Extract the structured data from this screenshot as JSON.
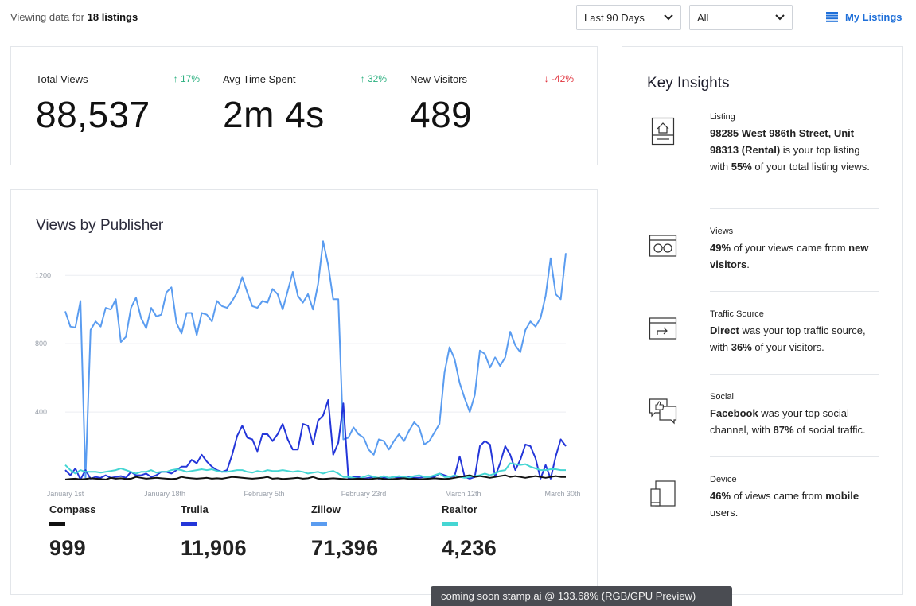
{
  "header": {
    "viewing_prefix": "Viewing data for",
    "viewing_count": "18 listings",
    "date_range": "Last 90 Days",
    "filter": "All",
    "my_listings": "My Listings"
  },
  "stats": [
    {
      "label": "Total Views",
      "change": "↑ 17%",
      "value": "88,537"
    },
    {
      "label": "Avg Time Spent",
      "change": "↑ 32%",
      "value": "2m 4s"
    },
    {
      "label": "New Visitors",
      "change": "↓ -42%",
      "value": "489"
    }
  ],
  "colors": {
    "up": "#2bb07f",
    "down": "#e0313b",
    "link": "#1e6fd9",
    "compass": "#111111",
    "trulia": "#2436d9",
    "zillow": "#5a9cf0",
    "realtor": "#45d6d3"
  },
  "chart": {
    "title": "Views by Publisher",
    "legend": [
      {
        "name": "Compass",
        "total": "999"
      },
      {
        "name": "Trulia",
        "total": "11,906"
      },
      {
        "name": "Zillow",
        "total": "71,396"
      },
      {
        "name": "Realtor",
        "total": "4,236"
      }
    ]
  },
  "chart_data": {
    "type": "line",
    "title": "Views by Publisher",
    "xlabel": "",
    "ylabel": "",
    "x_ticks": [
      "January 1st",
      "January 18th",
      "February 5th",
      "February 23rd",
      "March 12th",
      "March 30th"
    ],
    "y_ticks": [
      400,
      800,
      1200
    ],
    "ylim": [
      0,
      1420
    ],
    "grid": true,
    "series": [
      {
        "name": "Zillow",
        "values": [
          990,
          900,
          895,
          1050,
          10,
          880,
          930,
          900,
          1010,
          1000,
          1060,
          810,
          840,
          1010,
          1070,
          950,
          890,
          1010,
          960,
          970,
          1100,
          1130,
          920,
          860,
          980,
          980,
          850,
          980,
          970,
          930,
          1050,
          1020,
          1010,
          1050,
          1100,
          1190,
          1100,
          1020,
          1010,
          1050,
          1040,
          1120,
          1090,
          1000,
          1110,
          1220,
          1080,
          1040,
          1090,
          1000,
          1150,
          1400,
          1260,
          1060,
          1060,
          240,
          250,
          310,
          270,
          250,
          180,
          150,
          240,
          230,
          180,
          230,
          270,
          230,
          290,
          340,
          310,
          210,
          230,
          280,
          330,
          630,
          780,
          710,
          570,
          480,
          400,
          500,
          760,
          740,
          660,
          720,
          670,
          720,
          870,
          790,
          750,
          880,
          930,
          900,
          950,
          1080,
          1300,
          1090,
          1060,
          1330
        ]
      },
      {
        "name": "Trulia",
        "values": [
          60,
          30,
          70,
          5,
          60,
          10,
          20,
          15,
          30,
          15,
          20,
          25,
          15,
          50,
          30,
          30,
          40,
          20,
          30,
          50,
          50,
          40,
          60,
          80,
          80,
          120,
          100,
          150,
          110,
          80,
          60,
          50,
          60,
          150,
          260,
          320,
          250,
          240,
          170,
          270,
          270,
          230,
          270,
          330,
          240,
          180,
          180,
          330,
          320,
          210,
          350,
          380,
          470,
          150,
          220,
          450,
          10,
          20,
          20,
          10,
          15,
          20,
          10,
          15,
          15,
          20,
          15,
          15,
          20,
          15,
          15,
          20,
          20,
          20,
          40,
          30,
          20,
          25,
          140,
          20,
          10,
          20,
          200,
          230,
          210,
          20,
          100,
          200,
          150,
          60,
          120,
          210,
          200,
          130,
          10,
          90,
          10,
          140,
          240,
          200
        ]
      },
      {
        "name": "Realtor",
        "values": [
          90,
          60,
          40,
          60,
          50,
          50,
          50,
          45,
          50,
          55,
          60,
          70,
          60,
          50,
          40,
          50,
          50,
          60,
          45,
          50,
          50,
          60,
          65,
          60,
          50,
          55,
          60,
          65,
          60,
          65,
          55,
          50,
          50,
          55,
          60,
          60,
          50,
          45,
          55,
          50,
          60,
          55,
          55,
          60,
          55,
          50,
          55,
          50,
          40,
          45,
          50,
          40,
          50,
          55,
          40,
          20,
          20,
          15,
          10,
          20,
          30,
          20,
          15,
          25,
          15,
          20,
          25,
          20,
          15,
          25,
          30,
          20,
          20,
          30,
          40,
          20,
          20,
          30,
          20,
          15,
          20,
          25,
          30,
          40,
          30,
          40,
          55,
          60,
          100,
          95,
          90,
          95,
          80,
          70,
          60,
          60,
          65,
          65,
          60,
          60
        ]
      },
      {
        "name": "Compass",
        "values": [
          5,
          8,
          10,
          6,
          8,
          12,
          10,
          8,
          5,
          15,
          10,
          12,
          8,
          10,
          20,
          15,
          10,
          12,
          15,
          12,
          10,
          8,
          10,
          20,
          15,
          12,
          10,
          12,
          15,
          10,
          12,
          10,
          15,
          20,
          18,
          15,
          12,
          10,
          12,
          15,
          20,
          10,
          12,
          8,
          10,
          12,
          15,
          10,
          12,
          20,
          10,
          8,
          10,
          12,
          10,
          8,
          6,
          8,
          10,
          8,
          6,
          10,
          12,
          8,
          6,
          8,
          10,
          12,
          8,
          10,
          6,
          8,
          10,
          12,
          10,
          8,
          10,
          15,
          20,
          25,
          30,
          20,
          25,
          20,
          15,
          20,
          25,
          30,
          20,
          25,
          20,
          15,
          20,
          25,
          20,
          15,
          20,
          25,
          20,
          20
        ]
      }
    ]
  },
  "insights": {
    "title": "Key Insights",
    "items": [
      {
        "category": "Listing",
        "text": "98285 West 986th Street, Unit 98313 (Rental) is your top listing with 55% of your total listing views."
      },
      {
        "category": "Views",
        "text": "49% of your views came from new visitors."
      },
      {
        "category": "Traffic Source",
        "text": "Direct was your top traffic source, with 36% of your visitors."
      },
      {
        "category": "Social",
        "text": "Facebook was your top social channel, with 87% of social traffic."
      },
      {
        "category": "Device",
        "text": "46% of views came from mobile users."
      }
    ]
  },
  "toast": "coming soon stamp.ai @ 133.68% (RGB/GPU Preview)"
}
